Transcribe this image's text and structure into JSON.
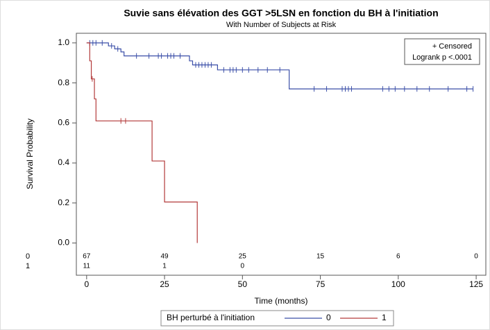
{
  "chart_data": {
    "type": "km",
    "title": "Suvie sans élévation des GGT >5LSN en fonction du BH à l'initiation",
    "subtitle": "With Number of Subjects at Risk",
    "y_label": "Survival Probability",
    "x_label": "Time (months)",
    "legend_title": "BH perturbé à l'initiation",
    "censored_label": "+ Censored",
    "annotation": "Logrank p <.0001",
    "xlim": [
      -3.3,
      128.1
    ],
    "ylim": [
      -0.161,
      1.048
    ],
    "xticks": [
      0,
      25,
      50,
      75,
      100,
      125
    ],
    "yticks": [
      {
        "value": 0,
        "label": "0.0"
      },
      0.2,
      0.4,
      0.6,
      0.8,
      {
        "value": 1,
        "label": "1.0"
      }
    ],
    "series": [
      {
        "name": "0",
        "color": "#3b4fa8",
        "x": [
          0,
          7,
          9,
          11,
          12,
          33,
          34,
          42,
          65,
          124
        ],
        "values": [
          1.0,
          0.985,
          0.97,
          0.955,
          0.935,
          0.91,
          0.89,
          0.865,
          0.77,
          0.77
        ],
        "censor_x": [
          1,
          2,
          3,
          5,
          8,
          10,
          16,
          20,
          23,
          24,
          26,
          27,
          28,
          30,
          35,
          36,
          37,
          38,
          39,
          40,
          44,
          46,
          47,
          48,
          50,
          52,
          55,
          58,
          62,
          73,
          77,
          82,
          83,
          84,
          85,
          95,
          97,
          99,
          102,
          106,
          110,
          116,
          122,
          124
        ],
        "censor_values": [
          1.0,
          1.0,
          1.0,
          1.0,
          0.985,
          0.97,
          0.935,
          0.935,
          0.935,
          0.935,
          0.935,
          0.935,
          0.935,
          0.935,
          0.89,
          0.89,
          0.89,
          0.89,
          0.89,
          0.89,
          0.865,
          0.865,
          0.865,
          0.865,
          0.865,
          0.865,
          0.865,
          0.865,
          0.865,
          0.77,
          0.77,
          0.77,
          0.77,
          0.77,
          0.77,
          0.77,
          0.77,
          0.77,
          0.77,
          0.77,
          0.77,
          0.77,
          0.77,
          0.77
        ],
        "at_risk": [
          67,
          49,
          25,
          15,
          6,
          0
        ]
      },
      {
        "name": "1",
        "color": "#b33a3a",
        "x": [
          0,
          1,
          1.5,
          2.5,
          3,
          21,
          25,
          35.5
        ],
        "values": [
          1.0,
          0.91,
          0.82,
          0.72,
          0.61,
          0.41,
          0.205,
          0.0
        ],
        "censor_x": [
          1.8,
          11,
          12.5
        ],
        "censor_values": [
          0.82,
          0.61,
          0.61
        ],
        "at_risk": [
          11,
          1,
          0
        ]
      }
    ]
  }
}
